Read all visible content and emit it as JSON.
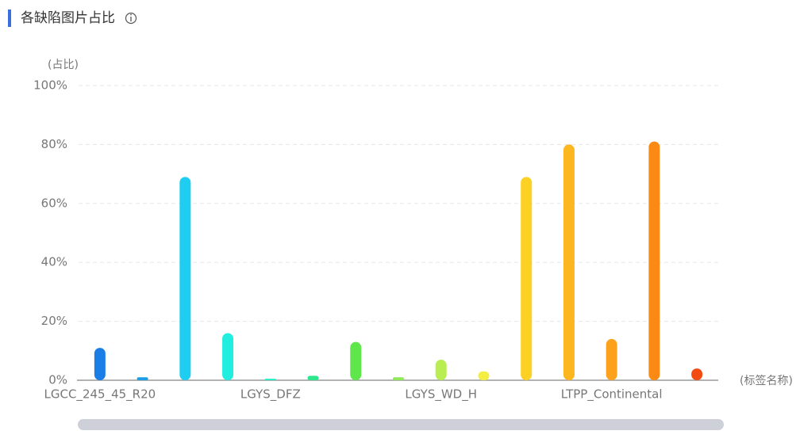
{
  "chart_data": {
    "type": "bar",
    "title": "各缺陷图片占比",
    "y_axis_label": "(占比)",
    "x_axis_label": "(标签名称)",
    "categories": [
      "LGCC_245_45_R20",
      null,
      null,
      null,
      "LGYS_DFZ",
      null,
      null,
      null,
      "LGYS_WD_H",
      null,
      null,
      null,
      "LTPP_Continental",
      null,
      null
    ],
    "values": [
      11,
      1,
      69,
      16,
      0.5,
      1.5,
      13,
      1,
      7,
      3,
      69,
      80,
      14,
      81,
      4
    ],
    "colors": [
      "#1a7ee6",
      "#1a9ee8",
      "#1fcdf2",
      "#22eee0",
      "#22eec4",
      "#2ee68c",
      "#5ee64a",
      "#8fe856",
      "#b9ee52",
      "#f3ee44",
      "#fdd124",
      "#fbb620",
      "#fba11e",
      "#fa8a14",
      "#f24c12"
    ],
    "ylim": [
      0,
      100
    ],
    "yticks": [
      {
        "value": 0,
        "label": "0%"
      },
      {
        "value": 20,
        "label": "20%"
      },
      {
        "value": 40,
        "label": "40%"
      },
      {
        "value": 60,
        "label": "60%"
      },
      {
        "value": 80,
        "label": "80%"
      },
      {
        "value": 100,
        "label": "100%"
      }
    ],
    "grid": true
  }
}
